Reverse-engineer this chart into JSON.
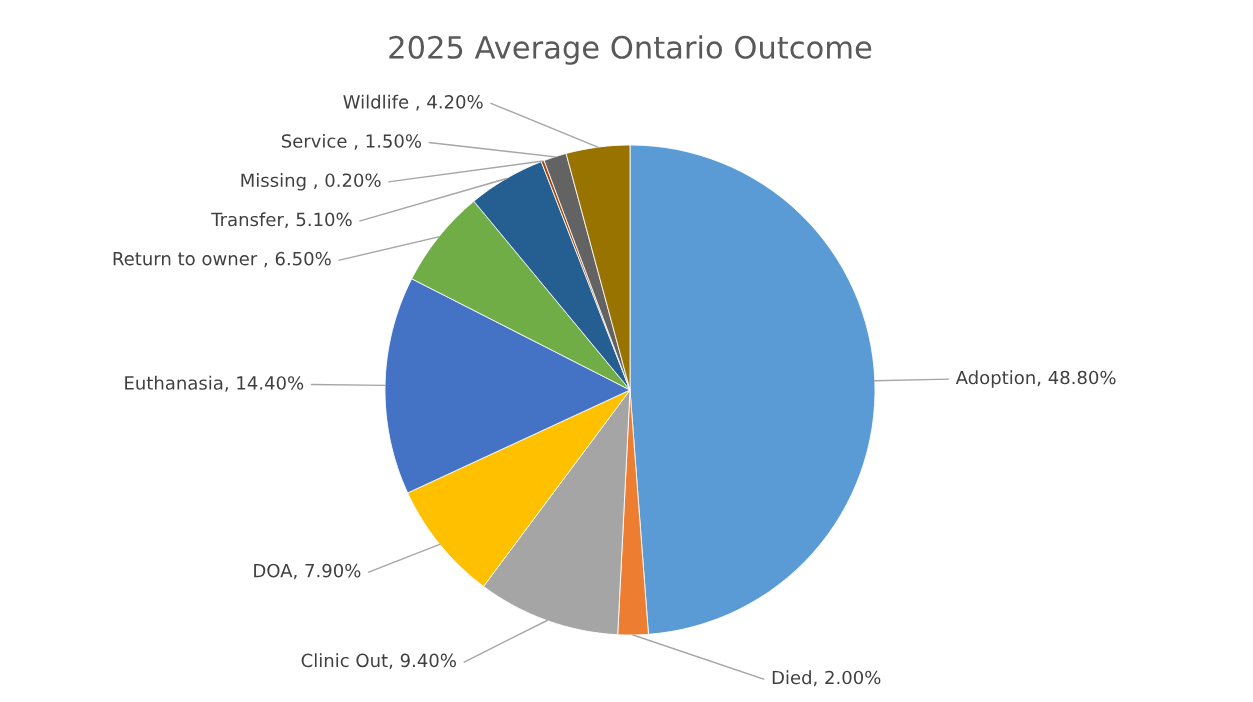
{
  "chart_data": {
    "type": "pie",
    "title": "2025 Average Ontario Outcome",
    "categories": [
      "Adoption",
      "Died",
      "Clinic Out",
      "DOA",
      "Euthanasia",
      "Return to owner ",
      "Transfer",
      "Missing ",
      "Service ",
      "Wildlife "
    ],
    "values": [
      48.8,
      2.0,
      9.4,
      7.9,
      14.4,
      6.5,
      5.1,
      0.2,
      1.5,
      4.2
    ],
    "value_labels": [
      "48.80%",
      "2.00%",
      "9.40%",
      "7.90%",
      "14.40%",
      "6.50%",
      "5.10%",
      "0.20%",
      "1.50%",
      "4.20%"
    ],
    "colors": [
      "#5b9bd5",
      "#ed7d31",
      "#a5a5a5",
      "#ffc000",
      "#4472c4",
      "#70ad47",
      "#255e91",
      "#9e480e",
      "#636363",
      "#997300"
    ],
    "legend": false
  }
}
